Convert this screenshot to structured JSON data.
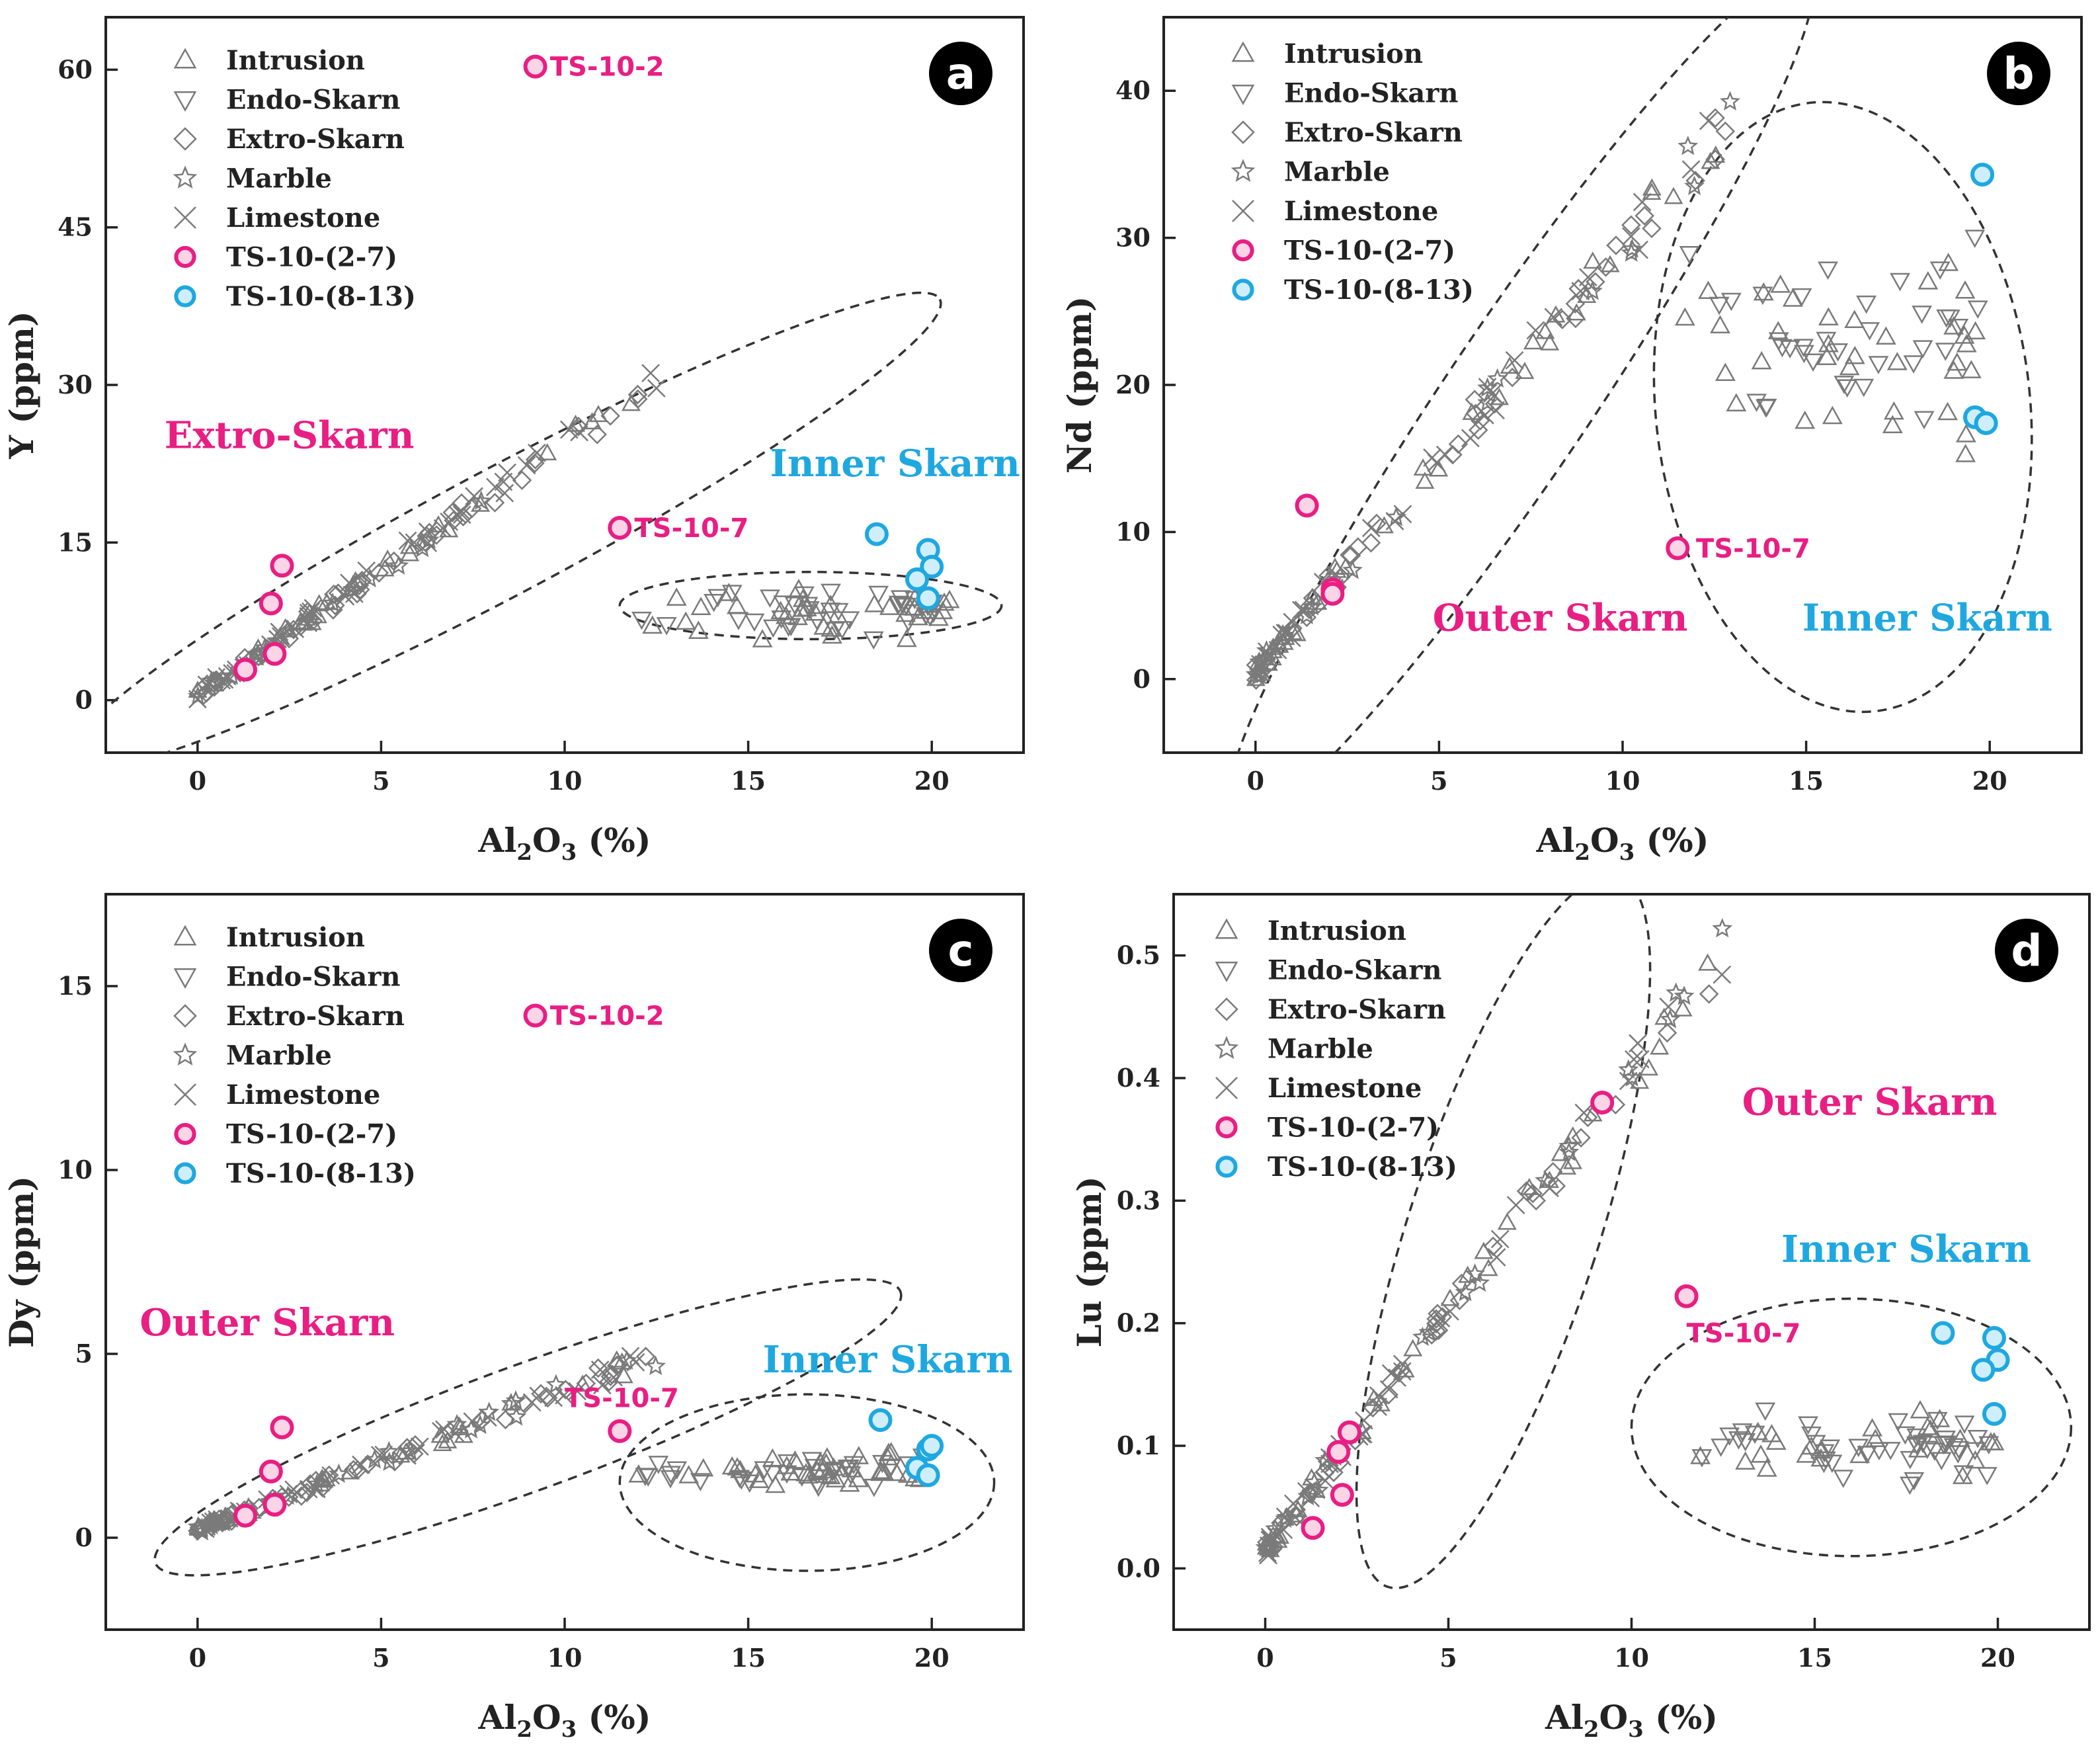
{
  "figure": {
    "x_axis_label": "Al2O3 (%)",
    "x_axis_label_parts": {
      "pre": "Al",
      "sub1": "2",
      "mid": "O",
      "sub2": "3",
      "post": " (%)"
    },
    "colors": {
      "ts_2_7": "#e91e83",
      "ts_8_13": "#1fa8e0",
      "symbol": "#7a7a7a",
      "outer_label": "#e91e83",
      "inner_label": "#1fa8e0"
    }
  },
  "legend_items": [
    {
      "label": "Intrusion",
      "icon": "triangle-up-icon"
    },
    {
      "label": "Endo-Skarn",
      "icon": "triangle-down-icon"
    },
    {
      "label": "Extro-Skarn",
      "icon": "diamond-icon"
    },
    {
      "label": "Marble",
      "icon": "star-icon"
    },
    {
      "label": "Limestone",
      "icon": "cross-icon"
    },
    {
      "label": "TS-10-(2-7)",
      "icon": "pink-circle-icon"
    },
    {
      "label": "TS-10-(8-13)",
      "icon": "blue-circle-icon"
    }
  ],
  "chart_data": [
    {
      "id": "a",
      "type": "scatter",
      "badge": "a",
      "ylabel": "Y (ppm)",
      "xlabel": "Al2O3 (%)",
      "xlim": [
        -2.5,
        22.5
      ],
      "ylim": [
        -5,
        65
      ],
      "xticks": [
        0,
        5,
        10,
        15,
        20
      ],
      "yticks": [
        0,
        15,
        30,
        45,
        60
      ],
      "regions": [
        {
          "label": "Extro-Skarn",
          "color": "outer",
          "at": [
            2.5,
            24
          ]
        },
        {
          "label": "Inner Skarn",
          "color": "inner",
          "at": [
            19.0,
            21.3
          ]
        }
      ],
      "point_labels": [
        {
          "text": "TS-10-2",
          "at": [
            9.6,
            60.3
          ]
        },
        {
          "text": "TS-10-7",
          "at": [
            11.9,
            16.4
          ]
        }
      ],
      "ellipses": [
        {
          "center": [
            8.3,
            16
          ],
          "a": 13.5,
          "b": 2.2,
          "angle_deg": 28
        },
        {
          "center": [
            16.7,
            9
          ],
          "a": 5.2,
          "b": 3.2,
          "angle_deg": 0
        }
      ],
      "highlight_2_7": [
        [
          9.2,
          60.3
        ],
        [
          11.5,
          16.4
        ],
        [
          2.3,
          12.8
        ],
        [
          2.0,
          9.2
        ],
        [
          2.1,
          4.4
        ],
        [
          1.3,
          2.9
        ]
      ],
      "highlight_8_13": [
        [
          18.5,
          15.8
        ],
        [
          19.9,
          14.3
        ],
        [
          20.0,
          12.7
        ],
        [
          19.6,
          11.5
        ],
        [
          19.9,
          9.7
        ]
      ],
      "background_trend": {
        "x_max": 12.5,
        "slope": 2.4,
        "intercept": 0.5,
        "scatter": 2.0
      },
      "background_inner": {
        "x_range": [
          11.5,
          20.5
        ],
        "y_center": 8.5,
        "y_spread": 3.5
      }
    },
    {
      "id": "b",
      "type": "scatter",
      "badge": "b",
      "ylabel": "Nd (ppm)",
      "xlabel": "Al2O3 (%)",
      "xlim": [
        -2.5,
        22.5
      ],
      "ylim": [
        -5,
        45
      ],
      "xticks": [
        0,
        5,
        10,
        15,
        20
      ],
      "yticks": [
        0,
        10,
        20,
        30,
        40
      ],
      "regions": [
        {
          "label": "Outer Skarn",
          "color": "outer",
          "at": [
            8.3,
            3.3
          ]
        },
        {
          "label": "Inner Skarn",
          "color": "inner",
          "at": [
            18.3,
            3.3
          ]
        }
      ],
      "point_labels": [
        {
          "text": "TS-10-7",
          "at": [
            12.0,
            8.9
          ]
        }
      ],
      "ellipses": [
        {
          "center": [
            7.2,
            19.2
          ],
          "a": 14.0,
          "b": 2.6,
          "angle_deg": 56
        },
        {
          "center": [
            16.0,
            18.5
          ],
          "a": 5.1,
          "b": 20.8,
          "angle_deg": 6
        }
      ],
      "highlight_2_7": [
        [
          1.4,
          11.8
        ],
        [
          2.1,
          6.1
        ],
        [
          2.1,
          5.8
        ],
        [
          11.5,
          8.9
        ]
      ],
      "highlight_8_13": [
        [
          19.8,
          34.3
        ],
        [
          19.6,
          17.8
        ],
        [
          19.9,
          17.4
        ]
      ],
      "background_trend": {
        "x_max": 13.0,
        "slope": 2.9,
        "intercept": 0.5,
        "scatter": 2.5
      },
      "background_inner": {
        "x_range": [
          11.5,
          20.0
        ],
        "y_center": 23.0,
        "y_spread": 10.0
      }
    },
    {
      "id": "c",
      "type": "scatter",
      "badge": "c",
      "ylabel": "Dy (ppm)",
      "xlabel": "Al2O3 (%)",
      "xlim": [
        -2.5,
        22.5
      ],
      "ylim": [
        -2.5,
        17.5
      ],
      "xticks": [
        0,
        5,
        10,
        15,
        20
      ],
      "yticks": [
        0,
        5,
        10,
        15
      ],
      "regions": [
        {
          "label": "Outer Skarn",
          "color": "outer",
          "at": [
            1.9,
            5.5
          ]
        },
        {
          "label": "Inner Skarn",
          "color": "inner",
          "at": [
            18.8,
            4.5
          ]
        }
      ],
      "point_labels": [
        {
          "text": "TS-10-2",
          "at": [
            9.6,
            14.2
          ]
        },
        {
          "text": "TS-10-7",
          "at": [
            10.0,
            3.8
          ]
        }
      ],
      "ellipses": [
        {
          "center": [
            9.0,
            3.0
          ],
          "a": 10.8,
          "b": 2.8,
          "angle_deg": 20
        },
        {
          "center": [
            16.6,
            1.5
          ],
          "a": 5.1,
          "b": 2.4,
          "angle_deg": 0
        }
      ],
      "highlight_2_7": [
        [
          9.2,
          14.2
        ],
        [
          11.5,
          2.9
        ],
        [
          2.3,
          3.0
        ],
        [
          2.0,
          1.8
        ],
        [
          2.1,
          0.9
        ],
        [
          1.3,
          0.6
        ]
      ],
      "highlight_8_13": [
        [
          18.6,
          3.2
        ],
        [
          19.9,
          2.4
        ],
        [
          19.6,
          1.9
        ],
        [
          19.9,
          1.7
        ],
        [
          20.0,
          2.5
        ]
      ],
      "background_trend": {
        "x_max": 12.5,
        "slope": 0.38,
        "intercept": 0.2,
        "scatter": 0.4
      },
      "background_inner": {
        "x_range": [
          11.5,
          20.0
        ],
        "y_center": 1.8,
        "y_spread": 0.6
      }
    },
    {
      "id": "d",
      "type": "scatter",
      "badge": "d",
      "ylabel": "Lu (ppm)",
      "xlabel": "Al2O3 (%)",
      "xlim": [
        -2.5,
        22.5
      ],
      "ylim": [
        -0.05,
        0.55
      ],
      "xticks": [
        0,
        5,
        10,
        15,
        20
      ],
      "yticks": [
        0.0,
        0.1,
        0.2,
        0.3,
        0.4,
        0.5
      ],
      "regions": [
        {
          "label": "Outer Skarn",
          "color": "outer",
          "at": [
            16.5,
            0.37
          ]
        },
        {
          "label": "Inner Skarn",
          "color": "inner",
          "at": [
            17.5,
            0.25
          ]
        }
      ],
      "point_labels": [
        {
          "text": "TS-10-7",
          "at": [
            11.5,
            0.192
          ]
        }
      ],
      "ellipses": [
        {
          "center": [
            6.5,
            0.275
          ],
          "a": 0.305,
          "b": 2.6,
          "angle_deg": 0,
          "tilted": true
        },
        {
          "center": [
            16.0,
            0.115
          ],
          "a": 6.0,
          "b": 0.105,
          "angle_deg": 0
        }
      ],
      "highlight_2_7": [
        [
          9.2,
          0.38
        ],
        [
          11.5,
          0.222
        ],
        [
          2.3,
          0.111
        ],
        [
          2.0,
          0.095
        ],
        [
          2.1,
          0.06
        ],
        [
          1.3,
          0.033
        ]
      ],
      "highlight_8_13": [
        [
          18.5,
          0.192
        ],
        [
          19.9,
          0.188
        ],
        [
          20.0,
          0.17
        ],
        [
          19.6,
          0.162
        ],
        [
          19.9,
          0.126
        ]
      ],
      "background_trend": {
        "x_max": 12.5,
        "slope": 0.039,
        "intercept": 0.015,
        "scatter": 0.03
      },
      "background_inner": {
        "x_range": [
          11.5,
          20.0
        ],
        "y_center": 0.1,
        "y_spread": 0.035
      }
    }
  ]
}
